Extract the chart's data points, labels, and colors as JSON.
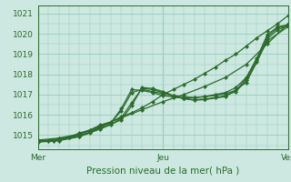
{
  "xlabel": "Pression niveau de la mer( hPa )",
  "ylim": [
    1014.3,
    1021.4
  ],
  "xlim": [
    0,
    48
  ],
  "xticks": [
    0,
    24,
    48
  ],
  "xticklabels": [
    "Mer",
    "Jeu",
    "Ven"
  ],
  "yticks": [
    1015,
    1016,
    1017,
    1018,
    1019,
    1020,
    1021
  ],
  "bg_color": "#cce8e0",
  "grid_color": "#9ecfbf",
  "line_color": "#2d6b2d",
  "lines": [
    [
      0,
      1014.75,
      2,
      1014.72,
      3,
      1014.72,
      4,
      1014.85,
      6,
      1014.9,
      8,
      1015.1,
      10,
      1015.25,
      12,
      1015.5,
      14,
      1015.65,
      16,
      1015.9,
      18,
      1016.1,
      20,
      1016.35,
      22,
      1016.65,
      24,
      1017.0,
      26,
      1017.25,
      28,
      1017.5,
      30,
      1017.75,
      32,
      1018.05,
      34,
      1018.35,
      36,
      1018.7,
      38,
      1019.0,
      40,
      1019.4,
      42,
      1019.8,
      44,
      1020.15,
      46,
      1020.5,
      48,
      1020.9
    ],
    [
      0,
      1014.75,
      4,
      1014.85,
      8,
      1015.05,
      12,
      1015.45,
      16,
      1015.85,
      20,
      1016.25,
      24,
      1016.65,
      28,
      1017.0,
      32,
      1017.4,
      36,
      1017.85,
      40,
      1018.5,
      44,
      1019.5,
      48,
      1020.5
    ],
    [
      0,
      1014.7,
      4,
      1014.8,
      6,
      1014.9,
      8,
      1015.05,
      10,
      1015.2,
      12,
      1015.4,
      14,
      1015.6,
      16,
      1016.2,
      18,
      1017.1,
      20,
      1017.25,
      22,
      1017.15,
      24,
      1017.05,
      26,
      1016.95,
      28,
      1016.9,
      30,
      1016.85,
      32,
      1016.9,
      34,
      1017.0,
      36,
      1017.1,
      38,
      1017.35,
      40,
      1017.85,
      42,
      1018.8,
      44,
      1019.95,
      46,
      1020.35,
      48,
      1020.45
    ],
    [
      0,
      1014.7,
      4,
      1014.78,
      8,
      1015.0,
      10,
      1015.1,
      12,
      1015.4,
      14,
      1015.6,
      16,
      1016.3,
      18,
      1017.25,
      20,
      1017.2,
      22,
      1017.1,
      24,
      1016.95,
      26,
      1016.88,
      28,
      1016.82,
      30,
      1016.85,
      32,
      1016.9,
      34,
      1016.95,
      36,
      1017.05,
      38,
      1017.2,
      40,
      1017.8,
      42,
      1018.7,
      44,
      1019.85,
      46,
      1020.3,
      48,
      1020.4
    ],
    [
      0,
      1014.68,
      4,
      1014.75,
      8,
      1014.95,
      12,
      1015.35,
      14,
      1015.5,
      16,
      1015.85,
      18,
      1016.6,
      20,
      1017.3,
      22,
      1017.25,
      24,
      1017.1,
      26,
      1016.92,
      28,
      1016.8,
      30,
      1016.75,
      32,
      1016.78,
      34,
      1016.85,
      36,
      1016.95,
      38,
      1017.15,
      40,
      1017.7,
      42,
      1018.6,
      44,
      1019.75,
      46,
      1020.2,
      48,
      1020.4
    ],
    [
      0,
      1014.65,
      4,
      1014.72,
      8,
      1014.92,
      12,
      1015.3,
      16,
      1015.75,
      18,
      1016.45,
      20,
      1017.35,
      22,
      1017.3,
      24,
      1017.15,
      26,
      1016.95,
      28,
      1016.8,
      30,
      1016.72,
      32,
      1016.75,
      36,
      1016.9,
      40,
      1017.6,
      44,
      1019.65,
      48,
      1020.35
    ]
  ]
}
